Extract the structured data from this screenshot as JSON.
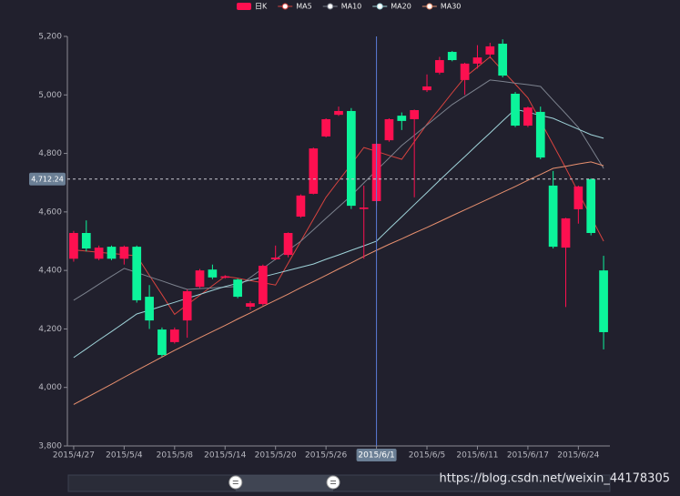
{
  "chart_data": {
    "type": "candlestick",
    "categories": [
      "2015/4/27",
      null,
      null,
      null,
      "2015/5/4",
      null,
      null,
      null,
      "2015/5/8",
      null,
      null,
      null,
      "2015/5/14",
      null,
      null,
      null,
      "2015/5/20",
      null,
      null,
      null,
      "2015/5/26",
      null,
      null,
      null,
      "2015/6/1",
      null,
      null,
      null,
      "2015/6/5",
      null,
      null,
      null,
      "2015/6/11",
      null,
      null,
      null,
      "2015/6/17",
      null,
      null,
      null,
      "2015/6/24",
      null,
      null
    ],
    "series": [
      {
        "name": "日K",
        "type": "candlestick",
        "up_color": "#fd1050",
        "down_color": "#0cf49b",
        "open": [
          4440,
          4528,
          4440,
          4481,
          4440,
          4481,
          4310,
          4198,
          4155,
          4229,
          4344,
          4403,
          4375,
          4369,
          4276,
          4285,
          4438,
          4453,
          4584,
          4662,
          4858,
          4932,
          4945,
          4610,
          4637,
          4845,
          4929,
          4917,
          5016,
          5076,
          5147,
          5051,
          5107,
          5138,
          5175,
          5004,
          4895,
          4942,
          4690,
          4478,
          4609,
          4712,
          4400
        ],
        "close": [
          4528,
          4475,
          4478,
          4440,
          4481,
          4298,
          4229,
          4111,
          4198,
          4329,
          4400,
          4376,
          4380,
          4310,
          4288,
          4416,
          4444,
          4528,
          4656,
          4817,
          4917,
          4945,
          4621,
          4615,
          4833,
          4917,
          4911,
          4948,
          5029,
          5119,
          5119,
          5107,
          5128,
          5166,
          5066,
          4895,
          4957,
          4786,
          4481,
          4578,
          4687,
          4528,
          4189
        ],
        "low": [
          4430,
          4465,
          4435,
          4435,
          4420,
          4290,
          4200,
          4105,
          4150,
          4170,
          4340,
          4370,
          4372,
          4305,
          4265,
          4280,
          4435,
          4445,
          4580,
          4660,
          4855,
          4928,
          4610,
          4440,
          4620,
          4840,
          4880,
          4650,
          5010,
          5070,
          5115,
          5000,
          5090,
          5125,
          5060,
          4890,
          4890,
          4780,
          4475,
          4275,
          4560,
          4520,
          4130
        ],
        "high": [
          4535,
          4571,
          4485,
          4485,
          4485,
          4485,
          4350,
          4205,
          4205,
          4335,
          4405,
          4420,
          4384,
          4372,
          4295,
          4420,
          4485,
          4530,
          4660,
          4820,
          4920,
          4960,
          4955,
          4690,
          4835,
          4920,
          4940,
          4950,
          5070,
          5130,
          5150,
          5110,
          5170,
          5178,
          5190,
          5010,
          4960,
          4960,
          4740,
          4580,
          4690,
          4715,
          4450
        ]
      },
      {
        "name": "MA5",
        "type": "line",
        "color": "#d8433f",
        "values": [
          4470,
          4466,
          4462,
          4458,
          4454,
          4450,
          4383,
          4317,
          4250,
          4283,
          4315,
          4348,
          4380,
          4373,
          4365,
          4358,
          4350,
          4425,
          4500,
          4575,
          4650,
          4707,
          4763,
          4820,
          4807,
          4793,
          4780,
          4840,
          4900,
          4953,
          5007,
          5060,
          5095,
          5130,
          5083,
          5037,
          4990,
          4910,
          4830,
          4750,
          4667,
          4583,
          4500
        ]
      },
      {
        "name": "MA10",
        "type": "line",
        "color": "#7c828e",
        "values": [
          4298,
          4325,
          4353,
          4380,
          4407,
          4393,
          4378,
          4364,
          4349,
          4335,
          4338,
          4340,
          4343,
          4345,
          4376,
          4407,
          4438,
          4469,
          4500,
          4539,
          4578,
          4617,
          4656,
          4699,
          4742,
          4784,
          4827,
          4862,
          4897,
          4932,
          4967,
          4995,
          5023,
          5051,
          5046,
          5040,
          5035,
          5029,
          4982,
          4936,
          4889,
          4819,
          4749
        ]
      },
      {
        "name": "MA20",
        "type": "line",
        "color": "#9fd3d9",
        "values": [
          4102,
          4132,
          4162,
          4191,
          4221,
          4251,
          4264,
          4278,
          4291,
          4305,
          4318,
          4332,
          4345,
          4356,
          4367,
          4378,
          4389,
          4400,
          4411,
          4422,
          4438,
          4453,
          4469,
          4484,
          4500,
          4542,
          4583,
          4625,
          4666,
          4708,
          4749,
          4789,
          4830,
          4870,
          4911,
          4951,
          4941,
          4930,
          4920,
          4901,
          4883,
          4864,
          4852
        ]
      },
      {
        "name": "MA30",
        "type": "line",
        "color": "#e8906f",
        "values": [
          3942,
          3965,
          3988,
          4011,
          4035,
          4058,
          4081,
          4104,
          4127,
          4148,
          4170,
          4191,
          4212,
          4234,
          4255,
          4277,
          4298,
          4319,
          4341,
          4362,
          4383,
          4405,
          4426,
          4448,
          4469,
          4489,
          4508,
          4528,
          4547,
          4567,
          4587,
          4607,
          4627,
          4647,
          4667,
          4687,
          4708,
          4728,
          4749,
          4756,
          4764,
          4771,
          4758
        ]
      }
    ],
    "ylim": [
      3800,
      5200
    ],
    "yticks": [
      {
        "value": 3800,
        "label": "3,800"
      },
      {
        "value": 4000,
        "label": "4,000"
      },
      {
        "value": 4200,
        "label": "4,200"
      },
      {
        "value": 4400,
        "label": "4,400"
      },
      {
        "value": 4600,
        "label": "4,600"
      },
      {
        "value": 4800,
        "label": "4,800"
      },
      {
        "value": 5000,
        "label": "5,000"
      },
      {
        "value": 5200,
        "label": "5,200"
      }
    ],
    "axis_pointer": {
      "category_index": 24,
      "y": {
        "value": 4712.24,
        "label": "4,712.24"
      }
    },
    "datazoom": {
      "start": 31,
      "end": 49
    },
    "watermark": "https://blog.csdn.net/weixin_44178305"
  }
}
